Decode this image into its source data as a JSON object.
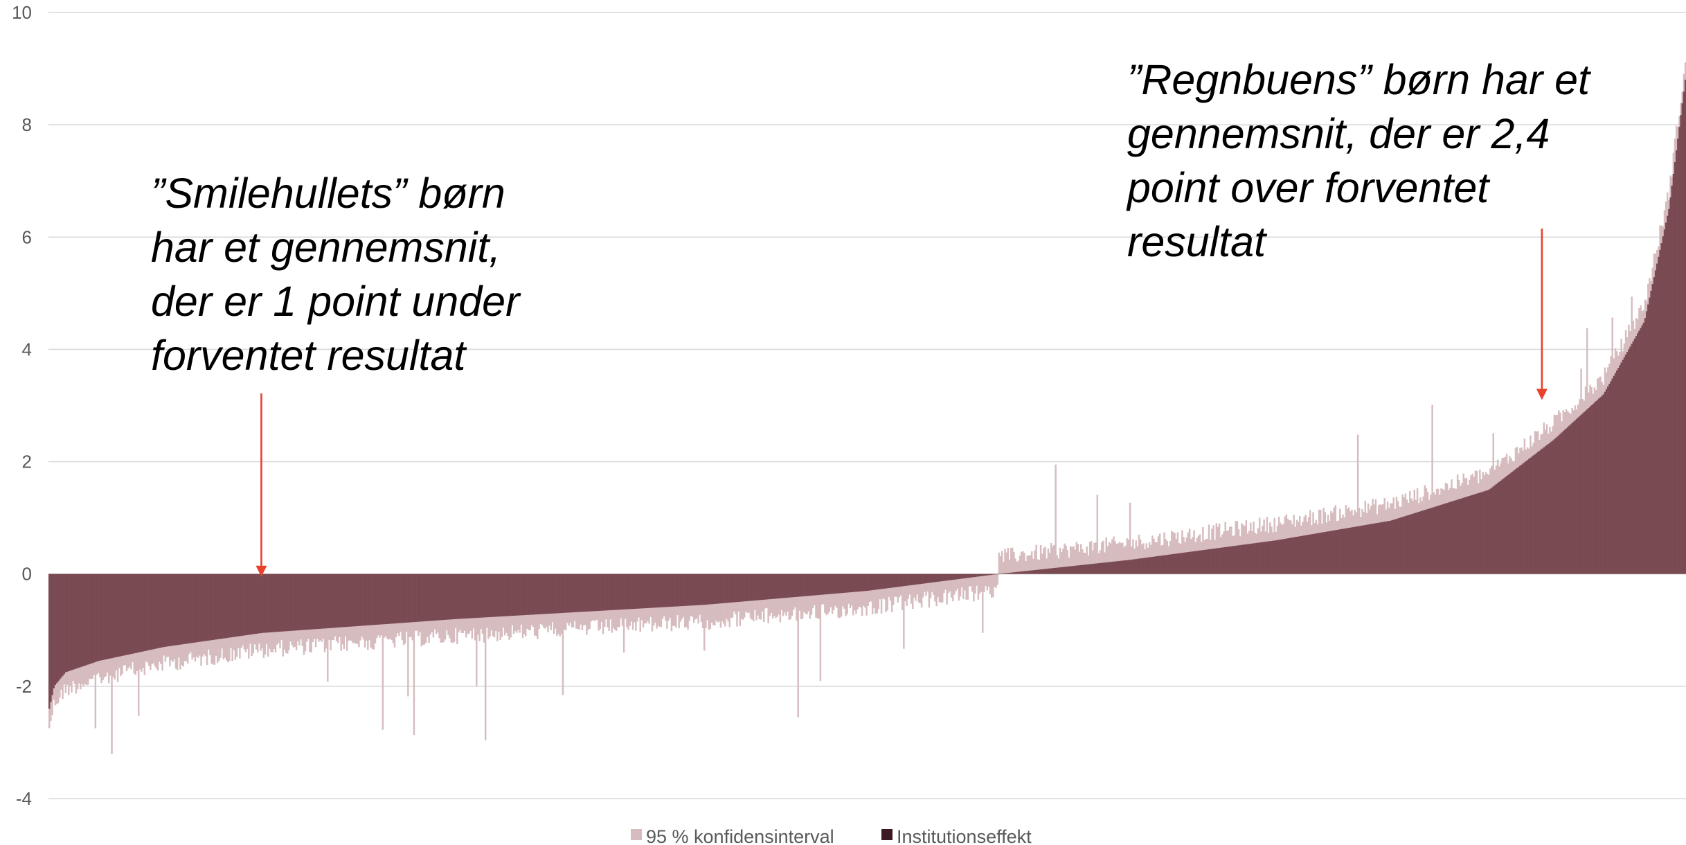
{
  "chart_data": {
    "type": "bar",
    "title": "",
    "xlabel": "",
    "ylabel": "",
    "ylim": [
      -4,
      10
    ],
    "yticks": [
      -4,
      -2,
      0,
      2,
      4,
      6,
      8,
      10
    ],
    "ytick_labels": [
      "-4",
      "-2",
      "0",
      "2",
      "4",
      "6",
      "8",
      "10"
    ],
    "grid": true,
    "sorted_ascending": true,
    "n_institutions": 1100,
    "series": [
      {
        "name": "Institutionseffekt",
        "color": "#7a4a52",
        "description_profile": [
          {
            "rank_fraction": 0.0,
            "value": -2.4
          },
          {
            "rank_fraction": 0.003,
            "value": -2.0
          },
          {
            "rank_fraction": 0.01,
            "value": -1.75
          },
          {
            "rank_fraction": 0.03,
            "value": -1.55
          },
          {
            "rank_fraction": 0.07,
            "value": -1.3
          },
          {
            "rank_fraction": 0.13,
            "value": -1.05
          },
          {
            "rank_fraction": 0.25,
            "value": -0.8
          },
          {
            "rank_fraction": 0.4,
            "value": -0.55
          },
          {
            "rank_fraction": 0.5,
            "value": -0.3
          },
          {
            "rank_fraction": 0.58,
            "value": 0.0
          },
          {
            "rank_fraction": 0.66,
            "value": 0.25
          },
          {
            "rank_fraction": 0.75,
            "value": 0.6
          },
          {
            "rank_fraction": 0.82,
            "value": 0.95
          },
          {
            "rank_fraction": 0.88,
            "value": 1.5
          },
          {
            "rank_fraction": 0.92,
            "value": 2.4
          },
          {
            "rank_fraction": 0.95,
            "value": 3.2
          },
          {
            "rank_fraction": 0.975,
            "value": 4.5
          },
          {
            "rank_fraction": 0.99,
            "value": 6.5
          },
          {
            "rank_fraction": 1.0,
            "value": 8.8
          }
        ]
      },
      {
        "name": "95 % konfidensinterval",
        "color": "#d6bcbf",
        "typical_halfwidth": 0.25
      }
    ],
    "legend": {
      "placement": "bottom-center",
      "items": [
        {
          "label": "95 % konfidensinterval",
          "color": "#d6bcbf"
        },
        {
          "label": "Institutionseffekt",
          "color": "#3d1a22"
        }
      ]
    },
    "annotations": [
      {
        "lines": [
          "”Smilehullets” børn",
          "har et gennemsnit,",
          "der er 1 point under",
          "forventet resultat"
        ],
        "arrow_x_rank_fraction": 0.13,
        "arrow_points_to_value": -0.05,
        "arrow_color": "#e8412c"
      },
      {
        "lines": [
          "”Regnbuens”  børn har et",
          "gennemsnit, der er 2,4",
          "point over forventet",
          "resultat"
        ],
        "arrow_x_rank_fraction": 0.912,
        "arrow_points_to_value": 3.1,
        "arrow_color": "#e8412c"
      }
    ]
  }
}
